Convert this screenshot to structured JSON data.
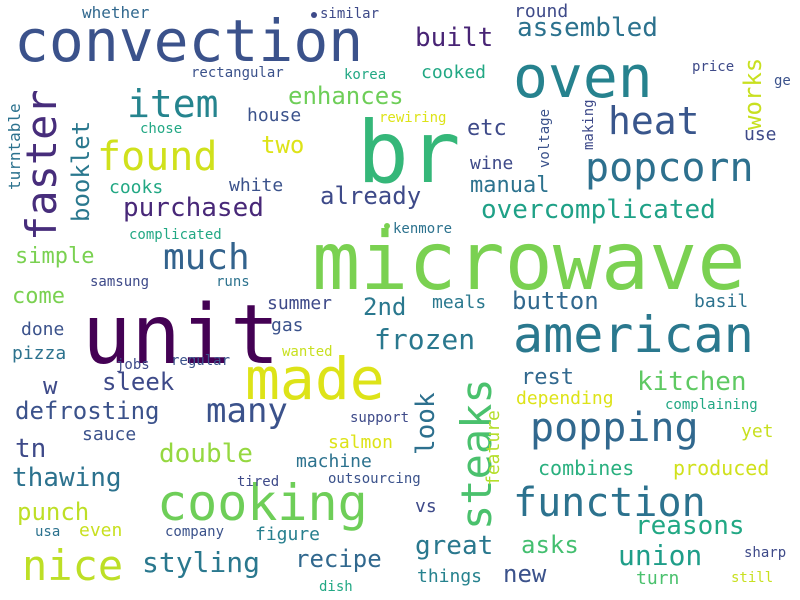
{
  "words": [
    {
      "text": "microwave",
      "color": "#7ad151"
    },
    {
      "text": "br",
      "color": "#35b779"
    },
    {
      "text": "unit",
      "color": "#440154"
    },
    {
      "text": "convection",
      "color": "#3b528b"
    },
    {
      "text": "oven",
      "color": "#26828e"
    },
    {
      "text": "american",
      "color": "#2a788e"
    },
    {
      "text": "made",
      "color": "#dde318"
    },
    {
      "text": "cooking",
      "color": "#6ece58"
    },
    {
      "text": "function",
      "color": "#2c728e"
    },
    {
      "text": "popping",
      "color": "#31688e"
    },
    {
      "text": "nice",
      "color": "#bddf26"
    },
    {
      "text": "steaks",
      "color": "#4ac16d"
    },
    {
      "text": "faster",
      "color": "#472d7b"
    },
    {
      "text": "popcorn",
      "color": "#2d708e"
    },
    {
      "text": "heat",
      "color": "#39568c"
    },
    {
      "text": "found",
      "color": "#d0e11c"
    },
    {
      "text": "item",
      "color": "#25848e"
    },
    {
      "text": "much",
      "color": "#33638d"
    },
    {
      "text": "many",
      "color": "#3b528b"
    },
    {
      "text": "styling",
      "color": "#2a788e"
    },
    {
      "text": "reasons",
      "color": "#22a884"
    },
    {
      "text": "purchased",
      "color": "#482878"
    },
    {
      "text": "overcomplicated",
      "color": "#1fa187"
    },
    {
      "text": "frozen",
      "color": "#2a788e"
    },
    {
      "text": "union",
      "color": "#1f9e89"
    },
    {
      "text": "thawing",
      "color": "#2c728e"
    },
    {
      "text": "kitchen",
      "color": "#5ec962"
    },
    {
      "text": "double",
      "color": "#95d840"
    },
    {
      "text": "recipe",
      "color": "#31688e"
    },
    {
      "text": "great",
      "color": "#2a788e"
    },
    {
      "text": "asks",
      "color": "#44bf70"
    },
    {
      "text": "built",
      "color": "#482475"
    },
    {
      "text": "assembled",
      "color": "#2c728e"
    },
    {
      "text": "already",
      "color": "#3e4a89"
    },
    {
      "text": "enhances",
      "color": "#6ece58"
    },
    {
      "text": "button",
      "color": "#31688e"
    },
    {
      "text": "sleek",
      "color": "#3e4a89"
    },
    {
      "text": "defrosting",
      "color": "#3b528b"
    },
    {
      "text": "punch",
      "color": "#bddf26"
    },
    {
      "text": "look",
      "color": "#2d708e"
    },
    {
      "text": "2nd",
      "color": "#2a788e"
    },
    {
      "text": "two",
      "color": "#dde318"
    },
    {
      "text": "works",
      "color": "#c8e020"
    },
    {
      "text": "booklet",
      "color": "#2a788e"
    },
    {
      "text": "tn",
      "color": "#3e4a89"
    },
    {
      "text": "new",
      "color": "#3b528b"
    },
    {
      "text": "manual",
      "color": "#2c728e"
    },
    {
      "text": "etc",
      "color": "#3e4a89"
    },
    {
      "text": "simple",
      "color": "#7ad151"
    },
    {
      "text": "rest",
      "color": "#31688e"
    },
    {
      "text": "produced",
      "color": "#d0e11c"
    },
    {
      "text": "combines",
      "color": "#2ab07f"
    },
    {
      "text": "come",
      "color": "#7ad151"
    },
    {
      "text": "things",
      "color": "#26828e"
    },
    {
      "text": "machine",
      "color": "#2c728e"
    },
    {
      "text": "figure",
      "color": "#277f8e"
    },
    {
      "text": "turn",
      "color": "#4ac16d"
    },
    {
      "text": "house",
      "color": "#3b528b"
    },
    {
      "text": "cooked",
      "color": "#22a884"
    },
    {
      "text": "wine",
      "color": "#3e4a89"
    },
    {
      "text": "white",
      "color": "#3b528b"
    },
    {
      "text": "meals",
      "color": "#2a788e"
    },
    {
      "text": "summer",
      "color": "#3e4a89"
    },
    {
      "text": "gas",
      "color": "#3b528b"
    },
    {
      "text": "basil",
      "color": "#2c728e"
    },
    {
      "text": "salmon",
      "color": "#dde318"
    },
    {
      "text": "sauce",
      "color": "#3b528b"
    },
    {
      "text": "yet",
      "color": "#c8e020"
    },
    {
      "text": "even",
      "color": "#c8e020"
    },
    {
      "text": "vs",
      "color": "#3e4a89"
    },
    {
      "text": "w",
      "color": "#3e4a89"
    },
    {
      "text": "cooks",
      "color": "#22a884"
    },
    {
      "text": "pizza",
      "color": "#2c728e"
    },
    {
      "text": "done",
      "color": "#3b528b"
    },
    {
      "text": "use",
      "color": "#3e4a89"
    },
    {
      "text": "depending",
      "color": "#dde318"
    },
    {
      "text": "feature",
      "color": "#b5de2b"
    },
    {
      "text": "turntable",
      "color": "#2c728e"
    },
    {
      "text": "round",
      "color": "#3e4a89"
    },
    {
      "text": "whether",
      "color": "#31688e"
    },
    {
      "text": "similar",
      "color": "#3e4a89"
    },
    {
      "text": "rectangular",
      "color": "#3b528b"
    },
    {
      "text": "korea",
      "color": "#22a884"
    },
    {
      "text": "price",
      "color": "#3e4a89"
    },
    {
      "text": "ge",
      "color": "#3b528b"
    },
    {
      "text": "chose",
      "color": "#22a884"
    },
    {
      "text": "rewiring",
      "color": "#dde318"
    },
    {
      "text": "making",
      "color": "#3e4a89"
    },
    {
      "text": "voltage",
      "color": "#3b528b"
    },
    {
      "text": "kenmore",
      "color": "#2c728e"
    },
    {
      "text": "complicated",
      "color": "#22a884"
    },
    {
      "text": "samsung",
      "color": "#3e4a89"
    },
    {
      "text": "runs",
      "color": "#2c728e"
    },
    {
      "text": "wanted",
      "color": "#c8e020"
    },
    {
      "text": "regular",
      "color": "#3b528b"
    },
    {
      "text": "jobs",
      "color": "#3e4a89"
    },
    {
      "text": "support",
      "color": "#3e4a89"
    },
    {
      "text": "complaining",
      "color": "#22a884"
    },
    {
      "text": "outsourcing",
      "color": "#3b528b"
    },
    {
      "text": "tired",
      "color": "#3e4a89"
    },
    {
      "text": "usa",
      "color": "#2c728e"
    },
    {
      "text": "company",
      "color": "#3b528b"
    },
    {
      "text": "dish",
      "color": "#22a884"
    },
    {
      "text": "sharp",
      "color": "#3e4a89"
    },
    {
      "text": "still",
      "color": "#c8e020"
    }
  ]
}
